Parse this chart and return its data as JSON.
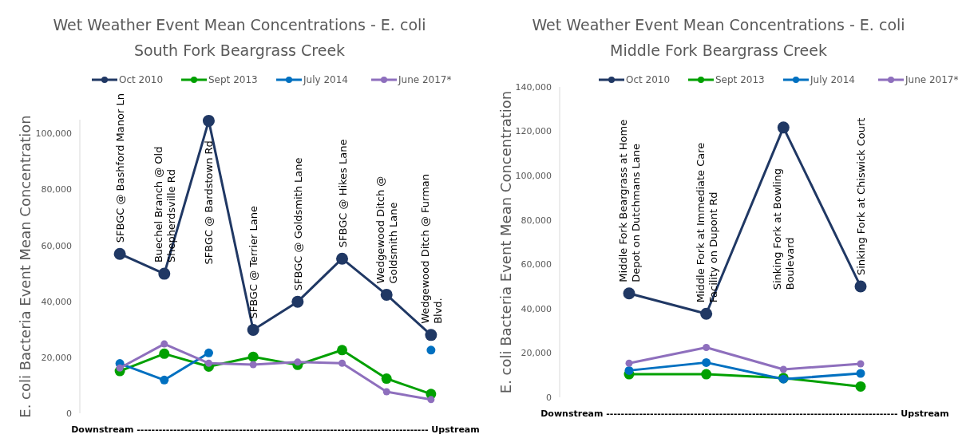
{
  "chart_data": [
    {
      "type": "line",
      "title": "Wet Weather Event Mean Concentrations - E. coli",
      "subtitle": "South Fork Beargrass Creek",
      "ylabel": "E. coli Bacteria Event Mean Concentration",
      "categories": [
        "SFBGC @ Bashford Manor Ln",
        "Buechel Branch @ Old Shepherdsville Rd",
        "SFBGC @ Bardstown Rd",
        "SFBGC @ Terrier Lane",
        "SFBGC @ Goldsmith Lane",
        "SFBGC @ Hikes Lane",
        "Wedgewood Ditch @ Goldsmith Lane",
        "Wedgewood Ditch @ Furman Blvd."
      ],
      "series": [
        {
          "name": "Oct 2010",
          "color": "#203864",
          "values": [
            57000,
            49900,
            104600,
            29800,
            39900,
            55300,
            42400,
            28000
          ]
        },
        {
          "name": "Sept 2013",
          "color": "#00a000",
          "values": [
            15100,
            21300,
            16700,
            20200,
            17300,
            22600,
            12400,
            6900
          ]
        },
        {
          "name": "July 2014",
          "color": "#0070c0",
          "values": [
            17800,
            11900,
            21600,
            null,
            null,
            null,
            null,
            22600
          ]
        },
        {
          "name": "June 2017*",
          "color": "#8e6fbd",
          "values": [
            16200,
            24800,
            17900,
            17400,
            18300,
            17900,
            7700,
            4900
          ]
        }
      ],
      "ylim": [
        0,
        105000
      ],
      "yticks": [
        {
          "value": 0,
          "label": "0"
        },
        {
          "value": 20000,
          "label": "20,000"
        },
        {
          "value": 40000,
          "label": "40,000"
        },
        {
          "value": 60000,
          "label": "60,000"
        },
        {
          "value": 80000,
          "label": "80,000"
        },
        {
          "value": 100000,
          "label": "100,000"
        }
      ],
      "grid": false,
      "legend": "top",
      "marker": "circle",
      "line_style": "solid",
      "annotations": [
        "Downstream -------------------------------------------------------------------------------- Upstream"
      ]
    },
    {
      "type": "line",
      "title": "Wet Weather Event Mean Concentrations - E. coli",
      "subtitle": "Middle Fork Beargrass Creek",
      "ylabel": "E. coli Bacteria Event Mean Concentration",
      "categories": [
        "Middle Fork Beargrass at Home Depot on Dutchmans Lane",
        "Middle Fork at Immediate Care Facility on Dupont Rd",
        "Sinking Fork at Bowling Boulevard",
        "Sinking Fork at Chiswick Court"
      ],
      "series": [
        {
          "name": "Oct 2010",
          "color": "#203864",
          "values": [
            46900,
            37700,
            121700,
            50000
          ]
        },
        {
          "name": "Sept 2013",
          "color": "#00a000",
          "values": [
            10400,
            10400,
            8700,
            4900
          ]
        },
        {
          "name": "July 2014",
          "color": "#0070c0",
          "values": [
            12100,
            15700,
            8200,
            10800
          ]
        },
        {
          "name": "June 2017*",
          "color": "#8e6fbd",
          "values": [
            15400,
            22500,
            12600,
            15100
          ]
        }
      ],
      "ylim": [
        0,
        140000
      ],
      "yticks": [
        {
          "value": 0,
          "label": "0"
        },
        {
          "value": 20000,
          "label": "20,000"
        },
        {
          "value": 40000,
          "label": "40,000"
        },
        {
          "value": 60000,
          "label": "60,000"
        },
        {
          "value": 80000,
          "label": "80,000"
        },
        {
          "value": 100000,
          "label": "100,000"
        },
        {
          "value": 120000,
          "label": "120,000"
        },
        {
          "value": 140000,
          "label": "140,000"
        }
      ],
      "grid": false,
      "legend": "top",
      "marker": "circle",
      "line_style": "solid",
      "annotations": [
        "Downstream -------------------------------------------------------------------------------- Upstream"
      ]
    }
  ]
}
